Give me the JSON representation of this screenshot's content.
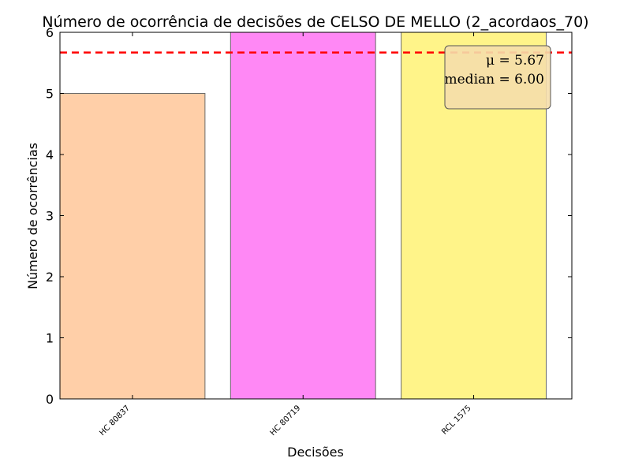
{
  "chart_data": {
    "type": "bar",
    "title": "Número de ocorrência de decisões de CELSO DE MELLO (2_acordaos_70)",
    "xlabel": "Decisões",
    "ylabel": "Número de ocorrências",
    "categories": [
      "HC 80837",
      "HC 80719",
      "RCL 1575"
    ],
    "values": [
      5,
      6,
      6
    ],
    "colors": [
      "#ffcfa8",
      "#ff88f5",
      "#fff489"
    ],
    "ylim": [
      0,
      6
    ],
    "yticks": [
      "0",
      "1",
      "2",
      "3",
      "4",
      "5",
      "6"
    ],
    "mean_line": {
      "value": 5.67,
      "color": "#ff0000",
      "style": "dashed"
    },
    "stats_box": {
      "mean_text": "μ = 5.67",
      "median_text": "median = 6.00",
      "background": "#f5deab",
      "placement": "top-right"
    },
    "grid": false,
    "legend": "none"
  }
}
